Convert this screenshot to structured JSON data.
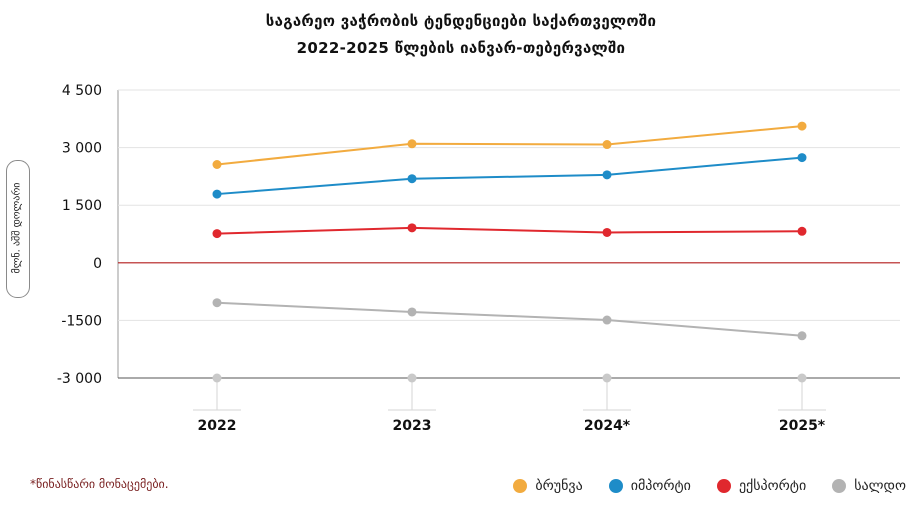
{
  "chart_data": {
    "type": "line",
    "title": "საგარეო  ვაჭრობის ტენდენციები საქართველოში",
    "subtitle": "2022-2025 წლების იანვარ-თებერვალში",
    "ylabel": "მლნ. აშშ დოლარი",
    "xlabel": "",
    "categories": [
      "2022",
      "2023",
      "2024*",
      "2025*"
    ],
    "y_ticks": [
      4500,
      3000,
      1500,
      0,
      -1500,
      -3000
    ],
    "y_tick_labels": [
      "4 500",
      "3 000",
      "1 500",
      "0",
      "-1500",
      "-3 000"
    ],
    "ylim": [
      -3000,
      4500
    ],
    "grid": true,
    "legend_position": "bottom-right",
    "series": [
      {
        "name": "ბრუნვა",
        "color": "#f2ab3f",
        "values": [
          2560,
          3100,
          3080,
          3560
        ]
      },
      {
        "name": "იმპორტი",
        "color": "#1e8cc8",
        "values": [
          1790,
          2190,
          2290,
          2740
        ]
      },
      {
        "name": "ექსპორტი",
        "color": "#e0282e",
        "values": [
          760,
          910,
          790,
          820
        ]
      },
      {
        "name": "სალდო",
        "color": "#b3b3b3",
        "values": [
          -1040,
          -1280,
          -1490,
          -1900
        ]
      }
    ],
    "note": "*წინასწარი მონაცემები."
  }
}
